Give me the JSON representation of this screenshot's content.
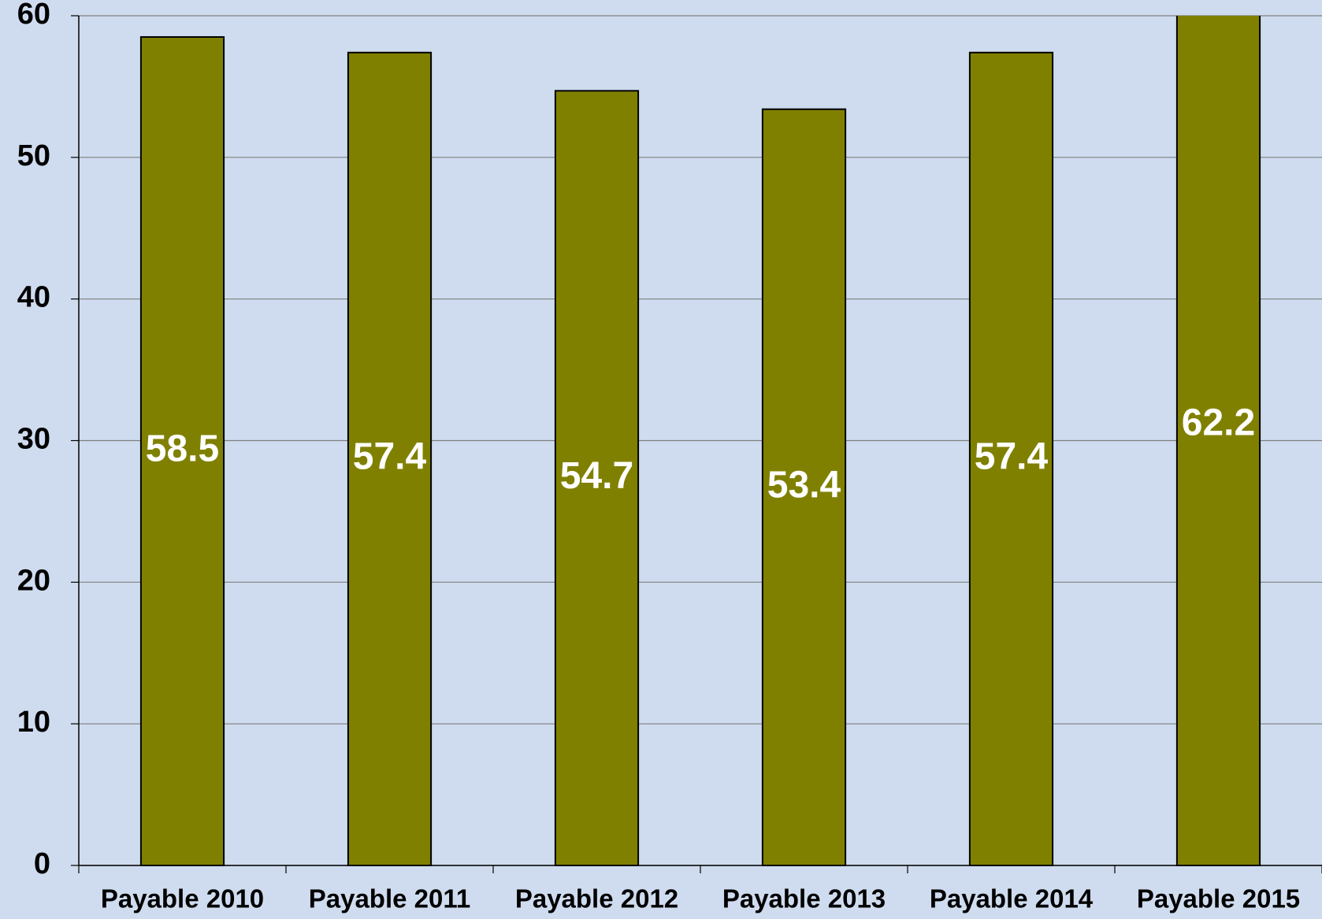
{
  "chart_data": {
    "type": "bar",
    "categories": [
      "Payable 2010",
      "Payable 2011",
      "Payable 2012",
      "Payable 2013",
      "Payable 2014",
      "Payable 2015"
    ],
    "values": [
      58.5,
      57.4,
      54.7,
      53.4,
      57.4,
      62.2
    ],
    "color": "#808000",
    "ylim": [
      0,
      60
    ],
    "yticks": [
      0,
      10,
      20,
      30,
      40,
      50,
      60
    ],
    "grid": true
  }
}
